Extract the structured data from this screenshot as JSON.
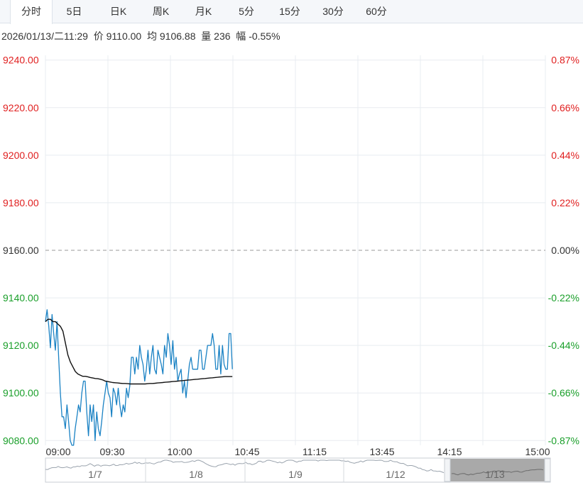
{
  "tabs": [
    {
      "label": "分时",
      "active": true
    },
    {
      "label": "5日"
    },
    {
      "label": "日K"
    },
    {
      "label": "周K"
    },
    {
      "label": "月K"
    },
    {
      "label": "5分"
    },
    {
      "label": "15分"
    },
    {
      "label": "30分"
    },
    {
      "label": "60分"
    }
  ],
  "info": {
    "datetime": "2026/01/13/二11:29",
    "price_label": "价",
    "price": "9110.00",
    "avg_label": "均",
    "avg": "9106.88",
    "volume_label": "量",
    "volume": "236",
    "change_label": "幅",
    "change": "-0.55%"
  },
  "colors": {
    "up": "#e02020",
    "down": "#1a9f2a",
    "price_line": "#1a82c4",
    "avg_line": "#111111",
    "grid": "#e8ecf0",
    "baseline": "#999999"
  },
  "chart_data": {
    "type": "line",
    "ylim": [
      9078,
      9242
    ],
    "y_ticks_left": [
      "9240.00",
      "9220.00",
      "9200.00",
      "9180.00",
      "9160.00",
      "9140.00",
      "9120.00",
      "9100.00",
      "9080.00"
    ],
    "y_ticks_right": [
      "0.87%",
      "0.66%",
      "0.44%",
      "0.22%",
      "0.00%",
      "-0.22%",
      "-0.44%",
      "-0.66%",
      "-0.87%"
    ],
    "y_tick_values": [
      9240,
      9220,
      9200,
      9180,
      9160,
      9140,
      9120,
      9100,
      9080
    ],
    "baseline": 9160,
    "x_ticks": [
      "09:00",
      "09:30",
      "10:00",
      "10:45",
      "11:15",
      "13:45",
      "14:15",
      "15:00"
    ],
    "session_minutes": 345,
    "series": [
      {
        "role": "price",
        "values": [
          9130,
          9135,
          9128,
          9119,
          9133,
          9125,
          9118,
          9130,
          9115,
          9100,
          9090,
          9090,
          9085,
          9095,
          9088,
          9080,
          9078,
          9078,
          9085,
          9090,
          9095,
          9092,
          9100,
          9105,
          9105,
          9092,
          9082,
          9095,
          9088,
          9095,
          9080,
          9092,
          9085,
          9082,
          9088,
          9095,
          9100,
          9105,
          9100,
          9098,
          9090,
          9102,
          9100,
          9095,
          9102,
          9095,
          9090,
          9095,
          9092,
          9102,
          9098,
          9103,
          9115,
          9115,
          9108,
          9115,
          9110,
          9120,
          9115,
          9112,
          9105,
          9110,
          9118,
          9108,
          9115,
          9120,
          9110,
          9108,
          9118,
          9115,
          9112,
          9108,
          9120,
          9115,
          9125,
          9120,
          9112,
          9122,
          9110,
          9115,
          9105,
          9108,
          9110,
          9100,
          9105,
          9098,
          9105,
          9112,
          9115,
          9110,
          9110,
          9110,
          9110,
          9118,
          9118,
          9110,
          9110,
          9115,
          9120,
          9120,
          9120,
          9125,
          9120,
          9110,
          9110,
          9120,
          9108,
          9120,
          9112,
          9110,
          9110,
          9125,
          9125,
          9110
        ],
        "name": ""
      },
      {
        "role": "average",
        "values": [
          9130,
          9131,
          9131,
          9130,
          9130,
          9129,
          9128,
          9126,
          9121,
          9116,
          9113,
          9111,
          9109,
          9108,
          9107.5,
          9107,
          9107,
          9106.8,
          9106.5,
          9106.3,
          9106.1,
          9106,
          9105.8,
          9105.5,
          9105,
          9104.8,
          9104.6,
          9104.4,
          9104.3,
          9104.2,
          9104.1,
          9104,
          9104,
          9103.9,
          9103.8,
          9103.8,
          9103.8,
          9103.8,
          9103.8,
          9103.8,
          9103.8,
          9103.9,
          9104,
          9104,
          9104.1,
          9104.2,
          9104.3,
          9104.4,
          9104.5,
          9104.6,
          9104.7,
          9104.8,
          9104.9,
          9105,
          9105.1,
          9105.2,
          9105.3,
          9105.4,
          9105.5,
          9105.6,
          9105.7,
          9105.8,
          9105.9,
          9106,
          9106.1,
          9106.2,
          9106.3,
          9106.4,
          9106.5,
          9106.6,
          9106.7,
          9106.8,
          9106.9,
          9106.9,
          9106.9,
          9106.9
        ],
        "name": ""
      }
    ]
  },
  "navigator": {
    "labels": [
      "1/7",
      "1/8",
      "1/9",
      "1/12",
      "1/13"
    ],
    "selected_label": "1/13"
  }
}
